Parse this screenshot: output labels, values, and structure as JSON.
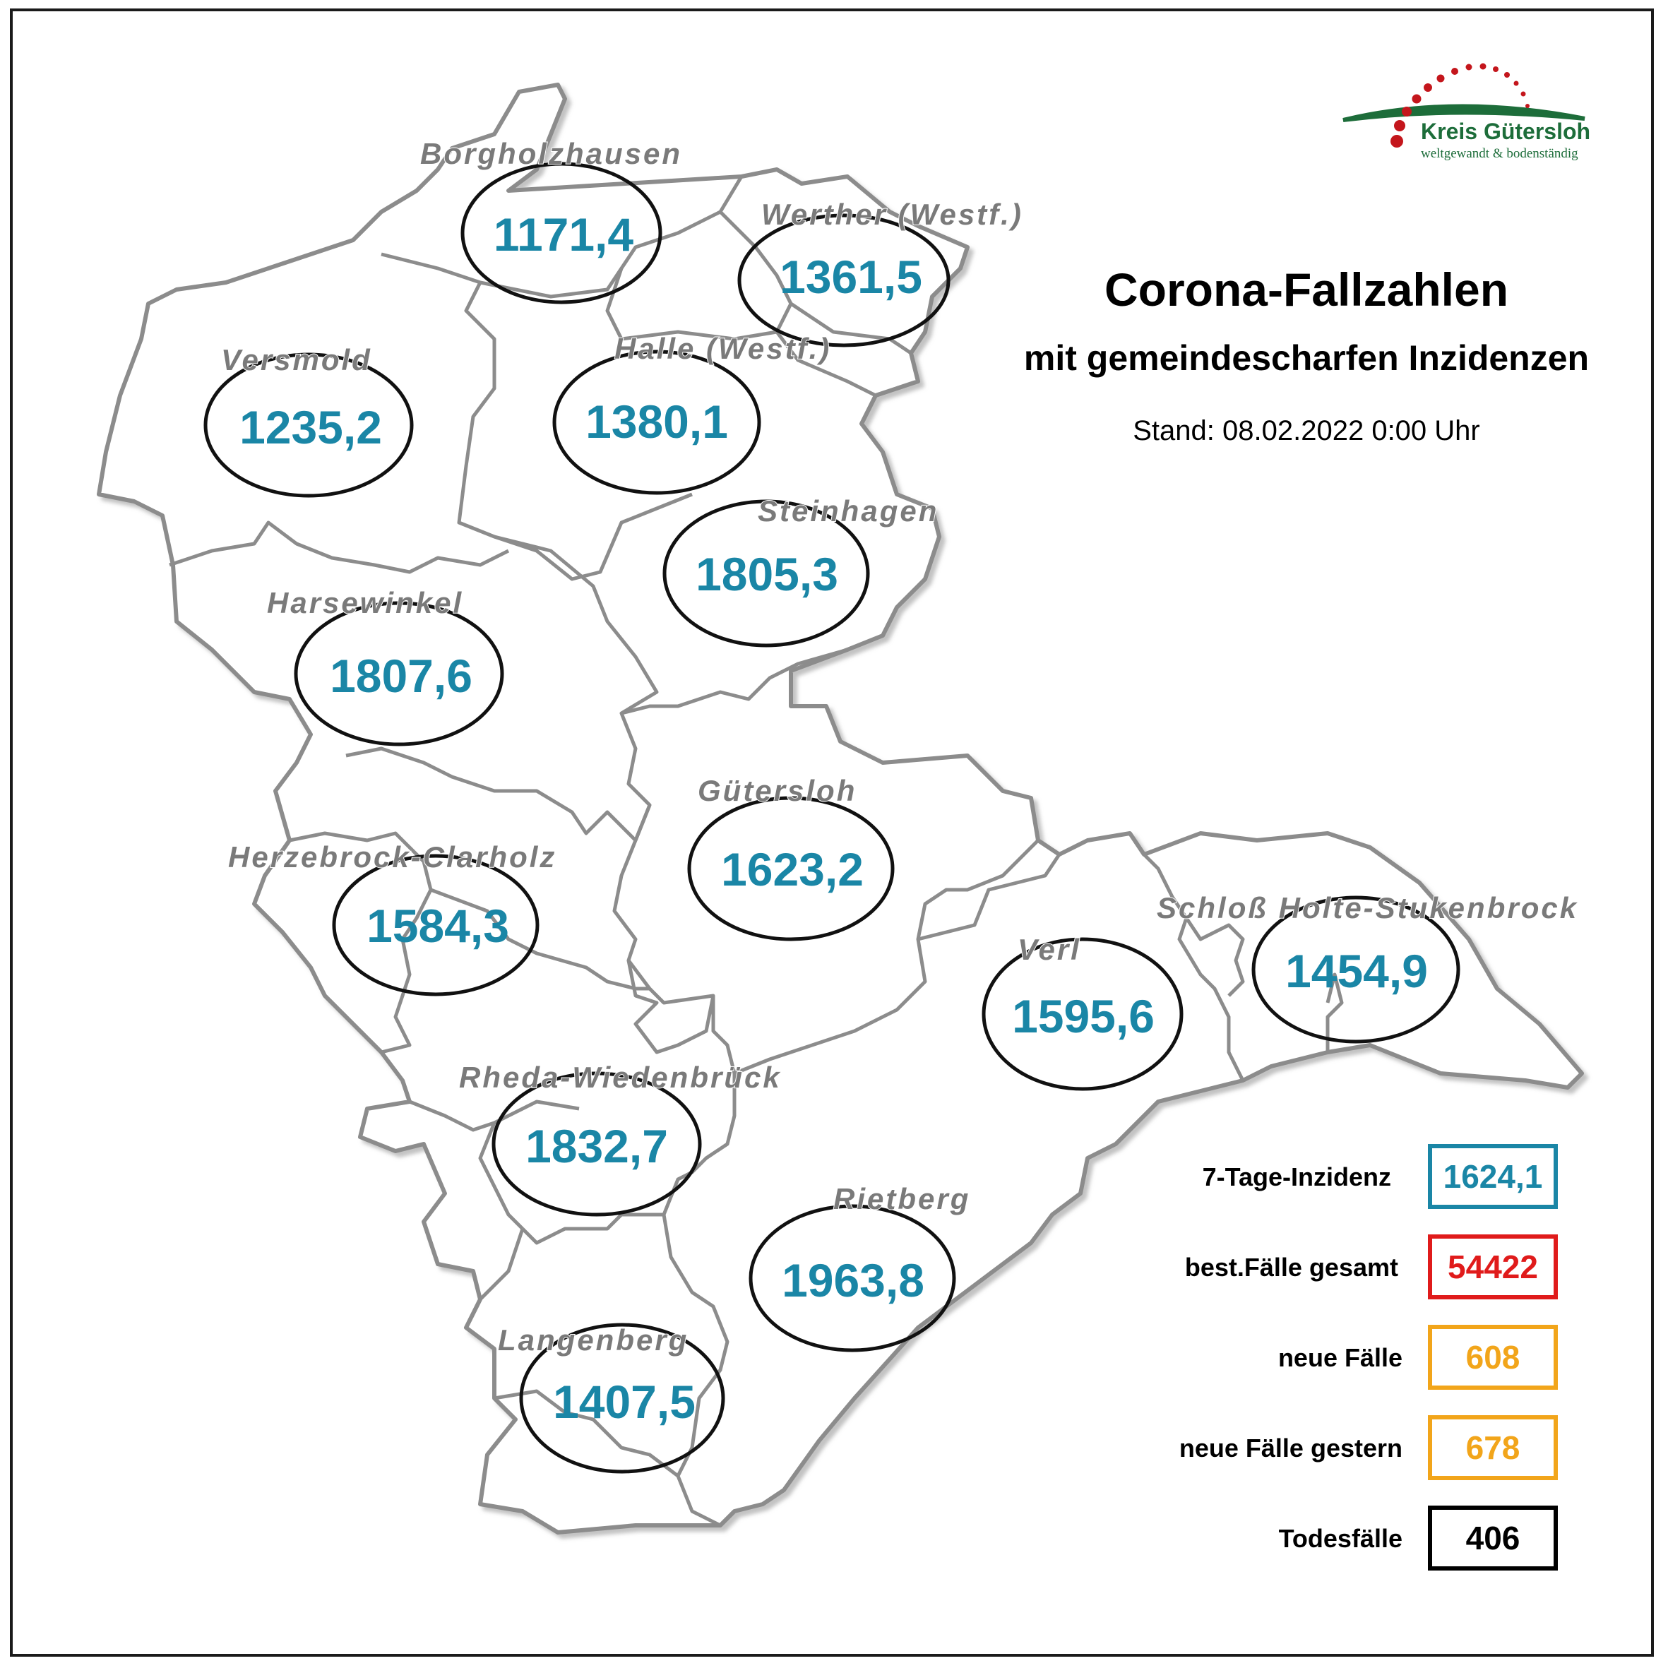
{
  "logo": {
    "name": "Kreis Gütersloh",
    "tagline": "weltgewandt & bodenständig",
    "green": "#1d6d3a",
    "red": "#c4161c"
  },
  "header": {
    "title": "Corona-Fallzahlen",
    "subtitle": "mit gemeindescharfen Inzidenzen",
    "stand": "Stand: 08.02.2022 0:00 Uhr"
  },
  "map": {
    "value_color": "#1a86a6",
    "label_color": "#7a7a7a",
    "municipalities": [
      {
        "name": "Borgholzhausen",
        "value": "1171,4"
      },
      {
        "name": "Werther (Westf.)",
        "value": "1361,5"
      },
      {
        "name": "Versmold",
        "value": "1235,2"
      },
      {
        "name": "Halle (Westf.)",
        "value": "1380,1"
      },
      {
        "name": "Steinhagen",
        "value": "1805,3"
      },
      {
        "name": "Harsewinkel",
        "value": "1807,6"
      },
      {
        "name": "Gütersloh",
        "value": "1623,2"
      },
      {
        "name": "Herzebrock-Clarholz",
        "value": "1584,3"
      },
      {
        "name": "Verl",
        "value": "1595,6"
      },
      {
        "name": "Schloß Holte-Stukenbrock",
        "value": "1454,9"
      },
      {
        "name": "Rheda-Wiedenbrück",
        "value": "1832,7"
      },
      {
        "name": "Rietberg",
        "value": "1963,8"
      },
      {
        "name": "Langenberg",
        "value": "1407,5"
      }
    ]
  },
  "legend": {
    "items": [
      {
        "label": "7-Tage-Inzidenz",
        "value": "1624,1",
        "color": "#1a86a6"
      },
      {
        "label": "best.Fälle gesamt",
        "value": "54422",
        "color": "#e01b1b"
      },
      {
        "label": "neue Fälle",
        "value": "608",
        "color": "#f2a51a"
      },
      {
        "label": "neue Fälle gestern",
        "value": "678",
        "color": "#f2a51a"
      },
      {
        "label": "Todesfälle",
        "value": "406",
        "color": "#000000"
      }
    ]
  }
}
